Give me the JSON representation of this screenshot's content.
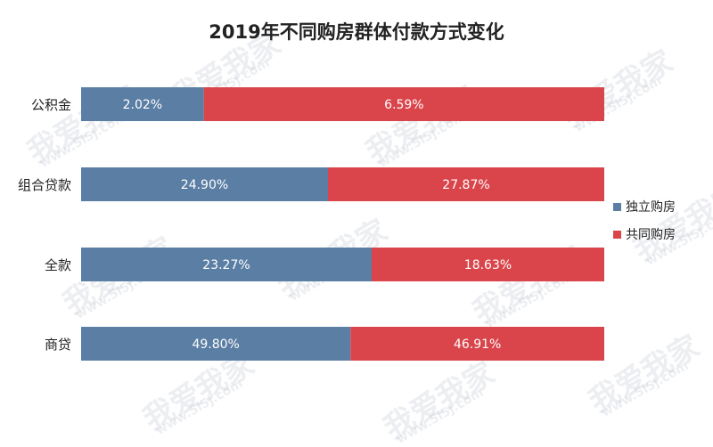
{
  "chart_data": {
    "type": "bar",
    "orientation": "horizontal",
    "stacked": true,
    "title": "2019年不同购房群体付款方式变化",
    "categories": [
      "公积金",
      "组合贷款",
      "全款",
      "商贷"
    ],
    "series": [
      {
        "name": "独立购房",
        "values": [
          2.02,
          24.9,
          23.27,
          49.8
        ],
        "labels": [
          "2.02%",
          "24.90%",
          "23.27%",
          "49.80%"
        ],
        "color": "#5b7ea4"
      },
      {
        "name": "共同购房",
        "values": [
          6.59,
          27.87,
          18.63,
          46.91
        ],
        "labels": [
          "6.59%",
          "27.87%",
          "18.63%",
          "46.91%"
        ],
        "color": "#d9454b"
      }
    ],
    "full_width_total": true,
    "grid": false,
    "legend_position": "right"
  },
  "watermark": {
    "text": "我爱我家",
    "url": "www.5i5j.com"
  }
}
